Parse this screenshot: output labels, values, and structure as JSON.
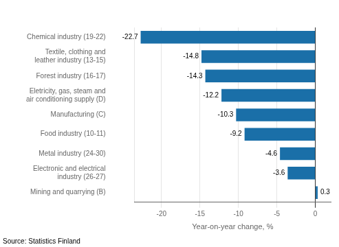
{
  "chart_data": {
    "type": "bar",
    "orientation": "horizontal",
    "categories": [
      "Chemical industry (19-22)",
      "Textile, clothing and\nleather industry (13-15)",
      "Forest industry (16-17)",
      "Eletricity, gas, steam and\nair conditioning supply (D)",
      "Manufacturing (C)",
      "Food industry (10-11)",
      "Metal industry (24-30)",
      "Electronic and electrical\nindustry (26-27)",
      "Mining and quarrying (B)"
    ],
    "values": [
      -22.7,
      -14.8,
      -14.3,
      -12.2,
      -10.3,
      -9.2,
      -4.6,
      -3.6,
      0.3
    ],
    "color": "#1a6fa8",
    "xlabel": "Year-on-year change, %",
    "xlim": [
      -23.5,
      2.0
    ],
    "xticks": [
      -20,
      -15,
      -10,
      -5,
      0
    ],
    "grid": true,
    "data_labels": true,
    "annotations": [
      "Source: Statistics Finland"
    ]
  }
}
